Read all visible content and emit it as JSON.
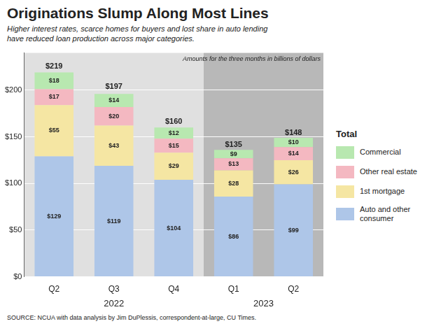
{
  "chart_data": {
    "type": "bar",
    "stacked": true,
    "title": "Originations Slump Along Most Lines",
    "subtitle": "Higher interest rates, scarce homes for buyers and lost share in auto lending\nhave reduced loan production across major categories.",
    "annotation": "Amounts for the three months in billions of dollars",
    "source": "SOURCE: NCUA with data analysis by Jim DuPlessis, correspondent-at-large, CU Times.",
    "legend": "right",
    "legend_title": "Total",
    "categories": [
      "Q2",
      "Q3",
      "Q4",
      "Q1",
      "Q2"
    ],
    "groups": [
      "2022",
      "2022",
      "2022",
      "2023",
      "2023"
    ],
    "group_colors": [
      "#e0e0e0",
      "#b8b8b8"
    ],
    "series": [
      {
        "name": "Auto and other\nconsumer",
        "color": "#aec6e8",
        "values": [
          129,
          119,
          104,
          86,
          99
        ],
        "value_labels": [
          "$129",
          "$119",
          "$104",
          "$86",
          "$99"
        ]
      },
      {
        "name": "1st mortgage",
        "color": "#f5e6a3",
        "values": [
          55,
          43,
          29,
          28,
          26
        ],
        "value_labels": [
          "$55",
          "$43",
          "$29",
          "$28",
          "$26"
        ]
      },
      {
        "name": "Other real estate",
        "color": "#f4b8c1",
        "values": [
          17,
          20,
          15,
          13,
          14
        ],
        "value_labels": [
          "$17",
          "$20",
          "$15",
          "$13",
          "$14"
        ]
      },
      {
        "name": "Commercial",
        "color": "#b8e8b0",
        "values": [
          18,
          14,
          12,
          9,
          10
        ],
        "value_labels": [
          "$18",
          "$14",
          "$12",
          "$9",
          "$10"
        ]
      }
    ],
    "totals": [
      219,
      197,
      160,
      135,
      148
    ],
    "total_labels": [
      "$219",
      "$197",
      "$160",
      "$135",
      "$148"
    ],
    "data_labels": true,
    "ylim": [
      0,
      240
    ],
    "yticks": [
      {
        "value": 0,
        "label": "$0"
      },
      {
        "value": 50,
        "label": "$50"
      },
      {
        "value": 100,
        "label": "$100"
      },
      {
        "value": 150,
        "label": "$150"
      },
      {
        "value": 200,
        "label": "$200"
      }
    ],
    "grid": true
  }
}
